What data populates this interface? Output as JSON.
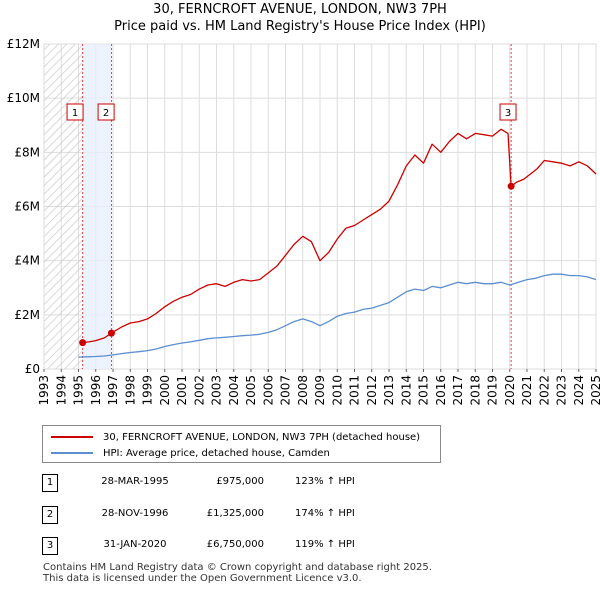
{
  "title_line1": "30, FERNCROFT AVENUE, LONDON, NW3 7PH",
  "title_line2": "Price paid vs. HM Land Registry's House Price Index (HPI)",
  "chart_data": {
    "type": "line",
    "title": "30, FERNCROFT AVENUE, LONDON, NW3 7PH — Price paid vs. HM Land Registry's House Price Index (HPI)",
    "xlabel": "",
    "ylabel": "",
    "xlim": [
      1993,
      2025
    ],
    "ylim": [
      0,
      12000000
    ],
    "x_ticks": [
      "1993",
      "1994",
      "1995",
      "1996",
      "1997",
      "1998",
      "1999",
      "2000",
      "2001",
      "2002",
      "2003",
      "2004",
      "2005",
      "2006",
      "2007",
      "2008",
      "2009",
      "2010",
      "2011",
      "2012",
      "2013",
      "2014",
      "2015",
      "2016",
      "2017",
      "2018",
      "2019",
      "2020",
      "2021",
      "2022",
      "2023",
      "2024",
      "2025"
    ],
    "y_ticks": [
      {
        "value": 0,
        "label": "£0"
      },
      {
        "value": 2000000,
        "label": "£2M"
      },
      {
        "value": 4000000,
        "label": "£4M"
      },
      {
        "value": 6000000,
        "label": "£6M"
      },
      {
        "value": 8000000,
        "label": "£8M"
      },
      {
        "value": 10000000,
        "label": "£10M"
      },
      {
        "value": 12000000,
        "label": "£12M"
      }
    ],
    "grid": true,
    "series": [
      {
        "name": "30, FERNCROFT AVENUE, LONDON, NW3 7PH (detached house)",
        "color": "#cc0000",
        "x": [
          1995.24,
          1995.6,
          1996.0,
          1996.5,
          1996.91,
          1997.5,
          1998.0,
          1998.5,
          1999.0,
          1999.5,
          2000.0,
          2000.5,
          2001.0,
          2001.5,
          2002.0,
          2002.5,
          2003.0,
          2003.5,
          2004.0,
          2004.5,
          2005.0,
          2005.5,
          2006.0,
          2006.5,
          2007.0,
          2007.5,
          2008.0,
          2008.5,
          2009.0,
          2009.5,
          2010.0,
          2010.5,
          2011.0,
          2011.5,
          2012.0,
          2012.5,
          2013.0,
          2013.5,
          2014.0,
          2014.5,
          2015.0,
          2015.5,
          2016.0,
          2016.5,
          2017.0,
          2017.5,
          2018.0,
          2018.5,
          2019.0,
          2019.5,
          2019.9,
          2020.08,
          2020.4,
          2020.8,
          2021.2,
          2021.6,
          2022.0,
          2022.5,
          2023.0,
          2023.5,
          2024.0,
          2024.5,
          2025.0
        ],
        "values": [
          975000,
          1000000,
          1050000,
          1150000,
          1325000,
          1550000,
          1700000,
          1750000,
          1850000,
          2050000,
          2300000,
          2500000,
          2650000,
          2750000,
          2950000,
          3100000,
          3150000,
          3050000,
          3200000,
          3300000,
          3250000,
          3300000,
          3550000,
          3800000,
          4200000,
          4600000,
          4900000,
          4700000,
          4000000,
          4300000,
          4800000,
          5200000,
          5300000,
          5500000,
          5700000,
          5900000,
          6200000,
          6800000,
          7500000,
          7900000,
          7600000,
          8300000,
          8000000,
          8400000,
          8700000,
          8500000,
          8700000,
          8650000,
          8600000,
          8850000,
          8700000,
          6750000,
          6900000,
          7000000,
          7200000,
          7400000,
          7700000,
          7650000,
          7600000,
          7500000,
          7650000,
          7500000,
          7200000
        ]
      },
      {
        "name": "HPI: Average price, detached house, Camden",
        "color": "#5b8fd0",
        "x": [
          1995.0,
          1995.5,
          1996.0,
          1996.5,
          1997.0,
          1997.5,
          1998.0,
          1998.5,
          1999.0,
          1999.5,
          2000.0,
          2000.5,
          2001.0,
          2001.5,
          2002.0,
          2002.5,
          2003.0,
          2003.5,
          2004.0,
          2004.5,
          2005.0,
          2005.5,
          2006.0,
          2006.5,
          2007.0,
          2007.5,
          2008.0,
          2008.5,
          2009.0,
          2009.5,
          2010.0,
          2010.5,
          2011.0,
          2011.5,
          2012.0,
          2012.5,
          2013.0,
          2013.5,
          2014.0,
          2014.5,
          2015.0,
          2015.5,
          2016.0,
          2016.5,
          2017.0,
          2017.5,
          2018.0,
          2018.5,
          2019.0,
          2019.5,
          2020.0,
          2020.5,
          2021.0,
          2021.5,
          2022.0,
          2022.5,
          2023.0,
          2023.5,
          2024.0,
          2024.5,
          2025.0
        ],
        "values": [
          440000,
          450000,
          460000,
          480000,
          520000,
          570000,
          610000,
          640000,
          680000,
          740000,
          830000,
          900000,
          960000,
          1000000,
          1060000,
          1120000,
          1150000,
          1170000,
          1200000,
          1230000,
          1250000,
          1280000,
          1350000,
          1450000,
          1600000,
          1750000,
          1850000,
          1750000,
          1600000,
          1750000,
          1950000,
          2050000,
          2100000,
          2200000,
          2250000,
          2350000,
          2450000,
          2650000,
          2850000,
          2950000,
          2900000,
          3050000,
          3000000,
          3100000,
          3200000,
          3150000,
          3200000,
          3150000,
          3150000,
          3200000,
          3100000,
          3200000,
          3300000,
          3350000,
          3450000,
          3500000,
          3500000,
          3450000,
          3450000,
          3400000,
          3300000
        ]
      }
    ],
    "sale_markers": [
      {
        "label": "1",
        "x": 1995.24,
        "value": 975000
      },
      {
        "label": "2",
        "x": 1996.91,
        "value": 1325000
      },
      {
        "label": "3",
        "x": 2020.08,
        "value": 6750000
      }
    ],
    "hatched_region": [
      1993,
      1995.24
    ],
    "shaded_region": [
      1995.24,
      1996.91
    ]
  },
  "legend": {
    "red_label": "30, FERNCROFT AVENUE, LONDON, NW3 7PH (detached house)",
    "red_color": "#cc0000",
    "blue_label": "HPI: Average price, detached house, Camden",
    "blue_color": "#5b8fd0"
  },
  "transactions": [
    {
      "num": "1",
      "date": "28-MAR-1995",
      "price": "£975,000",
      "pct": "123% ↑ HPI"
    },
    {
      "num": "2",
      "date": "28-NOV-1996",
      "price": "£1,325,000",
      "pct": "174% ↑ HPI"
    },
    {
      "num": "3",
      "date": "31-JAN-2020",
      "price": "£6,750,000",
      "pct": "119% ↑ HPI"
    }
  ],
  "footer_line1": "Contains HM Land Registry data © Crown copyright and database right 2025.",
  "footer_line2": "This data is licensed under the Open Government Licence v3.0."
}
